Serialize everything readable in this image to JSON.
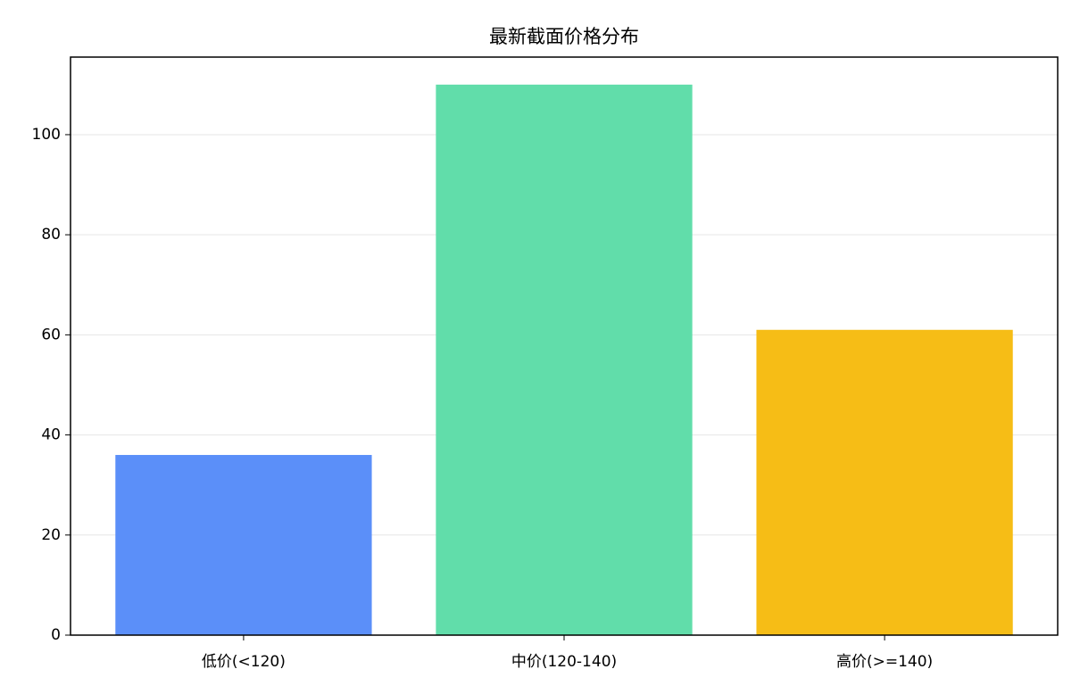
{
  "chart_data": {
    "type": "bar",
    "title": "最新截面价格分布",
    "categories": [
      "低价(<120)",
      "中价(120-140)",
      "高价(>=140)"
    ],
    "values": [
      36,
      110,
      61
    ],
    "colors": [
      "#5b8ff9",
      "#61ddaa",
      "#f6bd16"
    ],
    "ylim": [
      0,
      115.5
    ],
    "yticks": [
      0,
      20,
      40,
      60,
      80,
      100
    ],
    "grid": true
  }
}
